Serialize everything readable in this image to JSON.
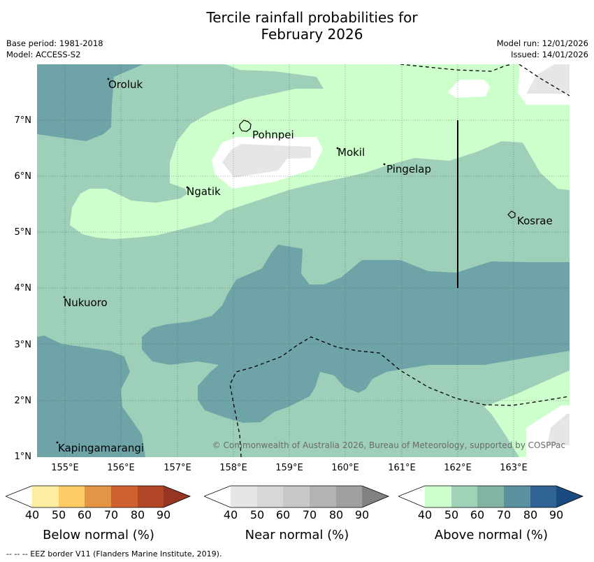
{
  "title": {
    "line1": "Tercile rainfall probabilities for",
    "line2": "February 2026"
  },
  "meta": {
    "base_period": "Base period: 1981-2018",
    "model": "Model: ACCESS-S2",
    "model_run": "Model run: 12/01/2026",
    "issued": "Issued: 14/01/2026"
  },
  "map": {
    "lat_labels": [
      "7°N",
      "6°N",
      "5°N",
      "4°N",
      "3°N",
      "2°N",
      "1°N"
    ],
    "lon_labels": [
      "155°E",
      "156°E",
      "157°E",
      "158°E",
      "159°E",
      "160°E",
      "161°E",
      "162°E",
      "163°E"
    ],
    "places": {
      "oroluk": "Oroluk",
      "pohnpei": "Pohnpei",
      "mokil": "Mokil",
      "pingelap": "Pingelap",
      "ngatik": "Ngatik",
      "kosrae": "Kosrae",
      "nukuoro": "Nukuoro",
      "kapingamarangi": "Kapingamarangi"
    },
    "credit": "© Commonwealth of Australia 2026, Bureau of Meteorology, supported by COSPPac"
  },
  "legends": [
    {
      "title": "Below normal (%)",
      "ticks": [
        "40",
        "50",
        "60",
        "70",
        "80",
        "90"
      ],
      "colors": [
        "#ffffff",
        "#feeda0",
        "#fecb65",
        "#e39445",
        "#cf6130",
        "#b04625",
        "#963521"
      ]
    },
    {
      "title": "Near normal (%)",
      "ticks": [
        "40",
        "50",
        "60",
        "70",
        "80",
        "90"
      ],
      "colors": [
        "#ffffff",
        "#e6e6e6",
        "#d7d7d7",
        "#c8c8c8",
        "#b4b4b4",
        "#a0a0a0",
        "#828282"
      ]
    },
    {
      "title": "Above normal (%)",
      "ticks": [
        "40",
        "50",
        "60",
        "70",
        "80",
        "90"
      ],
      "colors": [
        "#ffffff",
        "#ccffcc",
        "#a0d2b7",
        "#82b4a3",
        "#5a91a0",
        "#2f6395",
        "#1a4b80"
      ]
    }
  ],
  "footer": "--  --  -- EEZ border V11 (Flanders Marine Institute, 2019)."
}
